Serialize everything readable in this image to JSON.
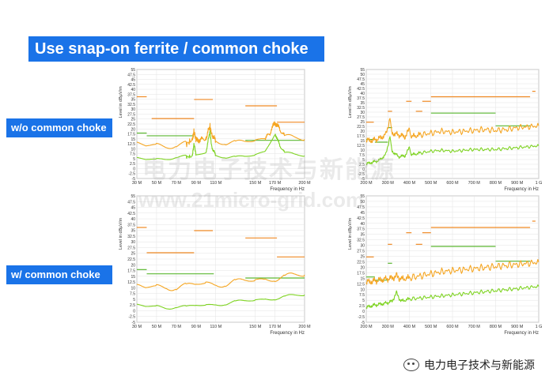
{
  "title": "Use snap-on ferrite / common choke",
  "labels": {
    "without": "w/o common choke",
    "with": "w/ common choke"
  },
  "watermark": {
    "line1": "电力电子技术与新能源",
    "line2": "www.21micro-grid.com"
  },
  "footer": {
    "text": "电力电子技术与新能源"
  },
  "colors": {
    "peak": "#f5a623",
    "avg": "#7ed321",
    "limit_qp": "#f08a24",
    "limit_avg": "#5cb832",
    "banner": "#1a73e8"
  },
  "chart_data": [
    {
      "id": "low-without",
      "type": "line",
      "ylabel": "Level in dBµV/m",
      "xlabel": "Frequency in Hz",
      "yticks": [
        "55",
        "47.5",
        "45",
        "42.5",
        "40",
        "37.5",
        "35",
        "32.5",
        "30",
        "27.5",
        "25",
        "22.5",
        "20",
        "17.5",
        "15",
        "12.5",
        "10",
        "7.5",
        "5",
        "2.5",
        "0",
        "-2.5",
        "-5"
      ],
      "ylim": [
        -5,
        55
      ],
      "xlim": [
        30,
        200
      ],
      "xticks": [
        {
          "v": 30,
          "l": "30 M"
        },
        {
          "v": 50,
          "l": "50 M"
        },
        {
          "v": 70,
          "l": "70 M"
        },
        {
          "v": 90,
          "l": "90 M"
        },
        {
          "v": 110,
          "l": "110 M"
        },
        {
          "v": 150,
          "l": "150 M"
        },
        {
          "v": 170,
          "l": "170 M"
        },
        {
          "v": 200,
          "l": "200 M"
        }
      ],
      "limit_qp": [
        [
          30,
          40,
          40
        ],
        [
          45,
          88,
          28
        ],
        [
          88,
          107,
          38.5
        ],
        [
          140,
          172,
          35
        ],
        [
          172,
          200,
          26
        ]
      ],
      "limit_avg": [
        [
          30,
          40,
          20
        ],
        [
          40,
          88,
          18.5
        ],
        [
          140,
          172,
          16
        ],
        [
          172,
          200,
          16
        ]
      ],
      "peak": [
        [
          30,
          14
        ],
        [
          40,
          13
        ],
        [
          50,
          13.5
        ],
        [
          60,
          13
        ],
        [
          70,
          13.5
        ],
        [
          80,
          14
        ],
        [
          86,
          16
        ],
        [
          88,
          21
        ],
        [
          90,
          16
        ],
        [
          95,
          16.5
        ],
        [
          100,
          17
        ],
        [
          104,
          24
        ],
        [
          106,
          19
        ],
        [
          110,
          16
        ],
        [
          120,
          15
        ],
        [
          130,
          14.5
        ],
        [
          140,
          15
        ],
        [
          150,
          16
        ],
        [
          160,
          17
        ],
        [
          165,
          20
        ],
        [
          170,
          26
        ],
        [
          175,
          22
        ],
        [
          180,
          18
        ],
        [
          190,
          17
        ],
        [
          200,
          16.5
        ]
      ],
      "avg": [
        [
          30,
          6
        ],
        [
          40,
          5.5
        ],
        [
          50,
          5.5
        ],
        [
          60,
          6
        ],
        [
          70,
          7
        ],
        [
          80,
          7
        ],
        [
          86,
          7
        ],
        [
          88,
          14
        ],
        [
          90,
          8
        ],
        [
          100,
          9
        ],
        [
          104,
          21
        ],
        [
          106,
          12
        ],
        [
          110,
          8
        ],
        [
          120,
          7
        ],
        [
          130,
          6.5
        ],
        [
          140,
          7
        ],
        [
          150,
          8
        ],
        [
          160,
          10
        ],
        [
          170,
          20
        ],
        [
          175,
          13
        ],
        [
          180,
          9
        ],
        [
          190,
          8
        ],
        [
          200,
          7.5
        ]
      ]
    },
    {
      "id": "high-without",
      "type": "line",
      "ylabel": "Level in dBµV/m",
      "xlabel": "Frequency in Hz",
      "yticks": [
        "55",
        "50",
        "47.5",
        "45",
        "42.5",
        "40",
        "37.5",
        "35",
        "32.5",
        "30",
        "27.5",
        "25",
        "22.5",
        "20",
        "17.5",
        "15",
        "12.5",
        "10",
        "7.5",
        "5",
        "2.5",
        "0",
        "-2.5",
        "-5"
      ],
      "ylim": [
        -5,
        55
      ],
      "xlim": [
        200,
        1000
      ],
      "xticks": [
        {
          "v": 200,
          "l": "200 M"
        },
        {
          "v": 300,
          "l": "300 M"
        },
        {
          "v": 400,
          "l": "400 M"
        },
        {
          "v": 500,
          "l": "500 M"
        },
        {
          "v": 600,
          "l": "600 M"
        },
        {
          "v": 700,
          "l": "700 M"
        },
        {
          "v": 800,
          "l": "800 M"
        },
        {
          "v": 900,
          "l": "900 M"
        },
        {
          "v": 1000,
          "l": "1 G"
        }
      ],
      "limit_qp": [
        [
          200,
          235,
          26
        ],
        [
          300,
          320,
          32
        ],
        [
          385,
          410,
          37.5
        ],
        [
          430,
          460,
          32
        ],
        [
          460,
          500,
          37.5
        ],
        [
          500,
          960,
          40
        ],
        [
          970,
          985,
          43
        ]
      ],
      "limit_avg": [
        [
          200,
          240,
          16.5
        ],
        [
          240,
          300,
          15
        ],
        [
          300,
          320,
          23
        ],
        [
          500,
          800,
          31
        ],
        [
          800,
          960,
          24
        ]
      ],
      "peak": [
        [
          200,
          16
        ],
        [
          230,
          16
        ],
        [
          260,
          17
        ],
        [
          290,
          19
        ],
        [
          310,
          28
        ],
        [
          320,
          20
        ],
        [
          350,
          19
        ],
        [
          380,
          18
        ],
        [
          400,
          22
        ],
        [
          410,
          18
        ],
        [
          450,
          19
        ],
        [
          500,
          20
        ],
        [
          550,
          21
        ],
        [
          600,
          20.5
        ],
        [
          650,
          21
        ],
        [
          700,
          21.5
        ],
        [
          750,
          22
        ],
        [
          800,
          21.5
        ],
        [
          850,
          22
        ],
        [
          900,
          23
        ],
        [
          950,
          23.5
        ],
        [
          1000,
          24
        ]
      ],
      "avg": [
        [
          200,
          3
        ],
        [
          230,
          4
        ],
        [
          260,
          5
        ],
        [
          290,
          8
        ],
        [
          310,
          18
        ],
        [
          320,
          10
        ],
        [
          350,
          7
        ],
        [
          380,
          7.5
        ],
        [
          400,
          12
        ],
        [
          410,
          8
        ],
        [
          450,
          9
        ],
        [
          500,
          10
        ],
        [
          550,
          10.5
        ],
        [
          600,
          10
        ],
        [
          650,
          10.5
        ],
        [
          700,
          11
        ],
        [
          750,
          11
        ],
        [
          800,
          11
        ],
        [
          850,
          11.5
        ],
        [
          900,
          12
        ],
        [
          950,
          12.5
        ],
        [
          1000,
          13
        ]
      ]
    },
    {
      "id": "low-with",
      "type": "line",
      "ylabel": "Level in dBµV/m",
      "xlabel": "Frequency in Hz",
      "yticks": [
        "55",
        "47.5",
        "45",
        "42.5",
        "40",
        "37.5",
        "35",
        "32.5",
        "30",
        "27.5",
        "25",
        "22.5",
        "20",
        "17.5",
        "15",
        "12.5",
        "10",
        "7.5",
        "5",
        "2.5",
        "0",
        "-2.5",
        "-5"
      ],
      "ylim": [
        -5,
        55
      ],
      "xlim": [
        30,
        200
      ],
      "xticks": [
        {
          "v": 30,
          "l": "30 M"
        },
        {
          "v": 50,
          "l": "50 M"
        },
        {
          "v": 70,
          "l": "70 M"
        },
        {
          "v": 90,
          "l": "90 M"
        },
        {
          "v": 110,
          "l": "110 M"
        },
        {
          "v": 150,
          "l": "150 M"
        },
        {
          "v": 170,
          "l": "170 M"
        },
        {
          "v": 200,
          "l": "200 M"
        }
      ],
      "limit_qp": [
        [
          30,
          40,
          40
        ],
        [
          40,
          88,
          28
        ],
        [
          88,
          107,
          38.5
        ],
        [
          140,
          172,
          35
        ],
        [
          172,
          200,
          26
        ]
      ],
      "limit_avg": [
        [
          30,
          40,
          20
        ],
        [
          40,
          108,
          18
        ],
        [
          140,
          172,
          16
        ],
        [
          172,
          200,
          16
        ]
      ],
      "peak": [
        [
          30,
          12
        ],
        [
          40,
          11.5
        ],
        [
          50,
          12
        ],
        [
          60,
          12
        ],
        [
          70,
          11.5
        ],
        [
          80,
          12
        ],
        [
          90,
          13
        ],
        [
          100,
          13.5
        ],
        [
          110,
          13
        ],
        [
          120,
          13.5
        ],
        [
          130,
          14
        ],
        [
          140,
          14.5
        ],
        [
          150,
          15
        ],
        [
          160,
          15.5
        ],
        [
          170,
          16
        ],
        [
          180,
          16.5
        ],
        [
          190,
          17
        ],
        [
          200,
          17.5
        ]
      ],
      "avg": [
        [
          30,
          3
        ],
        [
          40,
          2.5
        ],
        [
          50,
          2.5
        ],
        [
          60,
          2
        ],
        [
          70,
          2.5
        ],
        [
          80,
          2
        ],
        [
          90,
          3
        ],
        [
          100,
          3
        ],
        [
          110,
          3.5
        ],
        [
          120,
          4
        ],
        [
          130,
          4.5
        ],
        [
          140,
          5
        ],
        [
          150,
          5.5
        ],
        [
          160,
          6
        ],
        [
          170,
          6.5
        ],
        [
          180,
          7
        ],
        [
          190,
          7.5
        ],
        [
          200,
          8
        ]
      ]
    },
    {
      "id": "high-with",
      "type": "line",
      "ylabel": "Level in dBµV/m",
      "xlabel": "Frequency in Hz",
      "yticks": [
        "55",
        "50",
        "47.5",
        "45",
        "42.5",
        "40",
        "37.5",
        "35",
        "32.5",
        "30",
        "27.5",
        "25",
        "22.5",
        "20",
        "17.5",
        "15",
        "12.5",
        "10",
        "7.5",
        "5",
        "2.5",
        "0",
        "-2.5",
        "-5"
      ],
      "ylim": [
        -5,
        55
      ],
      "xlim": [
        200,
        1000
      ],
      "xticks": [
        {
          "v": 200,
          "l": "200 M"
        },
        {
          "v": 300,
          "l": "300 M"
        },
        {
          "v": 400,
          "l": "400 M"
        },
        {
          "v": 500,
          "l": "500 M"
        },
        {
          "v": 600,
          "l": "600 M"
        },
        {
          "v": 700,
          "l": "700 M"
        },
        {
          "v": 800,
          "l": "800 M"
        },
        {
          "v": 900,
          "l": "900 M"
        },
        {
          "v": 1000,
          "l": "1 G"
        }
      ],
      "limit_qp": [
        [
          200,
          235,
          26
        ],
        [
          300,
          320,
          32
        ],
        [
          385,
          410,
          37.5
        ],
        [
          430,
          460,
          32
        ],
        [
          460,
          500,
          37.5
        ],
        [
          500,
          960,
          40
        ],
        [
          970,
          985,
          43
        ]
      ],
      "limit_avg": [
        [
          200,
          240,
          16.5
        ],
        [
          240,
          300,
          15
        ],
        [
          300,
          320,
          23
        ],
        [
          500,
          800,
          31
        ],
        [
          800,
          960,
          24
        ]
      ],
      "peak": [
        [
          200,
          14
        ],
        [
          230,
          14.5
        ],
        [
          260,
          15
        ],
        [
          290,
          15.5
        ],
        [
          320,
          16
        ],
        [
          340,
          17
        ],
        [
          360,
          15.5
        ],
        [
          400,
          16
        ],
        [
          450,
          17
        ],
        [
          500,
          18
        ],
        [
          550,
          19
        ],
        [
          600,
          19.5
        ],
        [
          650,
          20
        ],
        [
          700,
          20.5
        ],
        [
          750,
          21
        ],
        [
          800,
          21.5
        ],
        [
          850,
          22
        ],
        [
          900,
          22.5
        ],
        [
          950,
          23
        ],
        [
          1000,
          23.5
        ]
      ],
      "avg": [
        [
          200,
          2
        ],
        [
          230,
          3
        ],
        [
          260,
          3.5
        ],
        [
          290,
          4
        ],
        [
          320,
          5
        ],
        [
          340,
          9
        ],
        [
          360,
          5
        ],
        [
          400,
          6
        ],
        [
          450,
          6.5
        ],
        [
          500,
          7
        ],
        [
          550,
          7.5
        ],
        [
          600,
          8
        ],
        [
          650,
          8.5
        ],
        [
          700,
          9
        ],
        [
          750,
          9.5
        ],
        [
          800,
          10
        ],
        [
          850,
          10.5
        ],
        [
          900,
          11
        ],
        [
          950,
          11.5
        ],
        [
          1000,
          12
        ]
      ]
    }
  ]
}
